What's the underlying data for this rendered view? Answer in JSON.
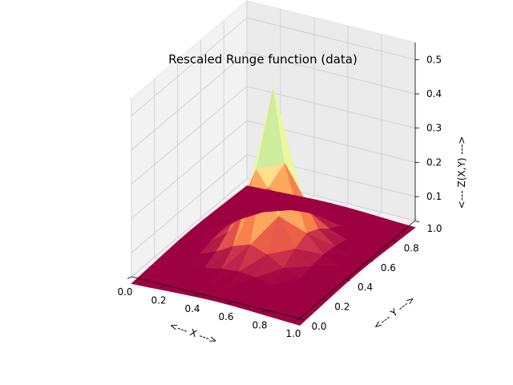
{
  "chart_data": {
    "type": "surface",
    "title": "Rescaled Runge function (data)",
    "xlabel": "<--- X --->",
    "ylabel": "<--- Y --->",
    "zlabel": "<--- Z(X,Y) --->",
    "xlim": [
      0.0,
      1.0
    ],
    "ylim": [
      0.0,
      1.0
    ],
    "zlim": [
      0.03,
      0.55
    ],
    "x_ticks": [
      "0.0",
      "0.2",
      "0.4",
      "0.6",
      "0.8",
      "1.0"
    ],
    "y_ticks": [
      "0.0",
      "0.2",
      "0.4",
      "0.6",
      "0.8",
      "1.0"
    ],
    "z_ticks": [
      "0.1",
      "0.2",
      "0.3",
      "0.4",
      "0.5"
    ],
    "grid": true,
    "colormap": "Spectral",
    "function": "z = 0.5 / (1 + 25*((2x-1)^2 + (2y-1)^2))",
    "grid_points": 10
  }
}
